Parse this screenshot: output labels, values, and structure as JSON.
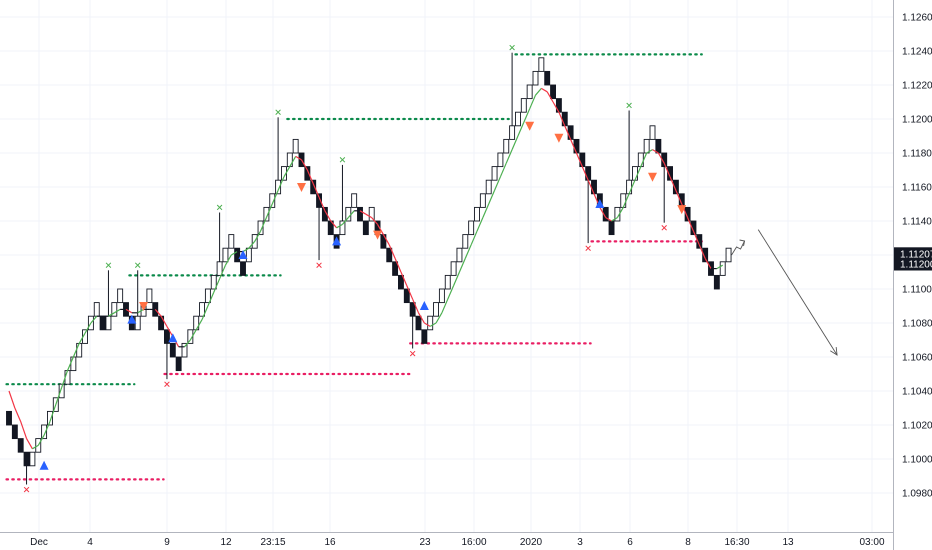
{
  "chart_data": {
    "type": "renko",
    "title": "",
    "xlabel": "",
    "ylabel": "",
    "ylim": [
      1.0972,
      1.1272
    ],
    "box_size": 0.0004,
    "y_ticks": [
      "1.12600",
      "1.12400",
      "1.12200",
      "1.12000",
      "1.11800",
      "1.11600",
      "1.11400",
      "1.11200",
      "1.11000",
      "1.10800",
      "1.10600",
      "1.10400",
      "1.10200",
      "1.10000",
      "1.09800"
    ],
    "x_ticks": [
      "Dec",
      "4",
      "9",
      "12",
      "23:15",
      "16",
      "23",
      "16:00",
      "2020",
      "3",
      "6",
      "8",
      "16:30",
      "13",
      "03:00"
    ],
    "last_price_label": "1.11207",
    "current_box_label": "1.11200",
    "colors": {
      "up_box_fill": "#ffffff",
      "up_box_border": "#131722",
      "down_box_fill": "#131722",
      "ma_up": "#4caf50",
      "ma_down": "#f23645",
      "ma_flat": "#131722",
      "resistance_dots": "#0b8a4a",
      "support_dots": "#e91e63",
      "buy_marker": "#2962ff",
      "sell_marker": "#ff7043",
      "pivot_high_x": "#4caf50",
      "pivot_low_x": "#f23645",
      "price_tag_bg": "#131722",
      "projection_arrow": "#555555"
    },
    "boxes": [
      {
        "o": 1.1028,
        "c": 1.102
      },
      {
        "o": 1.102,
        "c": 1.1012
      },
      {
        "o": 1.1012,
        "c": 1.1004
      },
      {
        "o": 1.1004,
        "c": 1.0996
      },
      {
        "o": 1.0996,
        "c": 1.1004
      },
      {
        "o": 1.1004,
        "c": 1.1012
      },
      {
        "o": 1.1012,
        "c": 1.102
      },
      {
        "o": 1.102,
        "c": 1.1028
      },
      {
        "o": 1.1028,
        "c": 1.1036
      },
      {
        "o": 1.1036,
        "c": 1.1044
      },
      {
        "o": 1.1044,
        "c": 1.1052
      },
      {
        "o": 1.1052,
        "c": 1.106
      },
      {
        "o": 1.106,
        "c": 1.1068
      },
      {
        "o": 1.1068,
        "c": 1.1076
      },
      {
        "o": 1.1076,
        "c": 1.1084
      },
      {
        "o": 1.1084,
        "c": 1.1092
      },
      {
        "o": 1.1084,
        "c": 1.1076
      },
      {
        "o": 1.1076,
        "c": 1.1084
      },
      {
        "o": 1.1084,
        "c": 1.1092
      },
      {
        "o": 1.1092,
        "c": 1.11
      },
      {
        "o": 1.1092,
        "c": 1.1084
      },
      {
        "o": 1.1084,
        "c": 1.1076
      },
      {
        "o": 1.1076,
        "c": 1.1084
      },
      {
        "o": 1.1084,
        "c": 1.1092
      },
      {
        "o": 1.1092,
        "c": 1.11
      },
      {
        "o": 1.1092,
        "c": 1.1084
      },
      {
        "o": 1.1084,
        "c": 1.1076
      },
      {
        "o": 1.1076,
        "c": 1.1068
      },
      {
        "o": 1.1068,
        "c": 1.106
      },
      {
        "o": 1.106,
        "c": 1.1052
      },
      {
        "o": 1.106,
        "c": 1.1068
      },
      {
        "o": 1.1068,
        "c": 1.1076
      },
      {
        "o": 1.1076,
        "c": 1.1084
      },
      {
        "o": 1.1084,
        "c": 1.1092
      },
      {
        "o": 1.1092,
        "c": 1.11
      },
      {
        "o": 1.11,
        "c": 1.1108
      },
      {
        "o": 1.1108,
        "c": 1.1116
      },
      {
        "o": 1.1116,
        "c": 1.1124
      },
      {
        "o": 1.1124,
        "c": 1.1132
      },
      {
        "o": 1.1124,
        "c": 1.1116
      },
      {
        "o": 1.1116,
        "c": 1.1108
      },
      {
        "o": 1.1116,
        "c": 1.1124
      },
      {
        "o": 1.1124,
        "c": 1.1132
      },
      {
        "o": 1.1132,
        "c": 1.114
      },
      {
        "o": 1.114,
        "c": 1.1148
      },
      {
        "o": 1.1148,
        "c": 1.1156
      },
      {
        "o": 1.1156,
        "c": 1.1164
      },
      {
        "o": 1.1164,
        "c": 1.1172
      },
      {
        "o": 1.1172,
        "c": 1.118
      },
      {
        "o": 1.118,
        "c": 1.1188
      },
      {
        "o": 1.118,
        "c": 1.1172
      },
      {
        "o": 1.1172,
        "c": 1.1164
      },
      {
        "o": 1.1164,
        "c": 1.1156
      },
      {
        "o": 1.1156,
        "c": 1.1148
      },
      {
        "o": 1.1148,
        "c": 1.114
      },
      {
        "o": 1.114,
        "c": 1.1132
      },
      {
        "o": 1.1132,
        "c": 1.1124
      },
      {
        "o": 1.1132,
        "c": 1.114
      },
      {
        "o": 1.114,
        "c": 1.1148
      },
      {
        "o": 1.1148,
        "c": 1.1156
      },
      {
        "o": 1.1148,
        "c": 1.114
      },
      {
        "o": 1.114,
        "c": 1.1132
      },
      {
        "o": 1.114,
        "c": 1.1148
      },
      {
        "o": 1.114,
        "c": 1.1132
      },
      {
        "o": 1.1132,
        "c": 1.1124
      },
      {
        "o": 1.1124,
        "c": 1.1116
      },
      {
        "o": 1.1116,
        "c": 1.1108
      },
      {
        "o": 1.1108,
        "c": 1.11
      },
      {
        "o": 1.11,
        "c": 1.1092
      },
      {
        "o": 1.1092,
        "c": 1.1084
      },
      {
        "o": 1.1084,
        "c": 1.1076
      },
      {
        "o": 1.1076,
        "c": 1.1068
      },
      {
        "o": 1.1076,
        "c": 1.1084
      },
      {
        "o": 1.1084,
        "c": 1.1092
      },
      {
        "o": 1.1092,
        "c": 1.11
      },
      {
        "o": 1.11,
        "c": 1.1108
      },
      {
        "o": 1.1108,
        "c": 1.1116
      },
      {
        "o": 1.1116,
        "c": 1.1124
      },
      {
        "o": 1.1124,
        "c": 1.1132
      },
      {
        "o": 1.1132,
        "c": 1.114
      },
      {
        "o": 1.114,
        "c": 1.1148
      },
      {
        "o": 1.1148,
        "c": 1.1156
      },
      {
        "o": 1.1156,
        "c": 1.1164
      },
      {
        "o": 1.1164,
        "c": 1.1172
      },
      {
        "o": 1.1172,
        "c": 1.118
      },
      {
        "o": 1.118,
        "c": 1.1188
      },
      {
        "o": 1.1188,
        "c": 1.1196
      },
      {
        "o": 1.1196,
        "c": 1.1204
      },
      {
        "o": 1.1204,
        "c": 1.1212
      },
      {
        "o": 1.1212,
        "c": 1.122
      },
      {
        "o": 1.122,
        "c": 1.1228
      },
      {
        "o": 1.1228,
        "c": 1.1236
      },
      {
        "o": 1.1228,
        "c": 1.122
      },
      {
        "o": 1.122,
        "c": 1.1212
      },
      {
        "o": 1.1212,
        "c": 1.1204
      },
      {
        "o": 1.1204,
        "c": 1.1196
      },
      {
        "o": 1.1196,
        "c": 1.1188
      },
      {
        "o": 1.1188,
        "c": 1.118
      },
      {
        "o": 1.118,
        "c": 1.1172
      },
      {
        "o": 1.1172,
        "c": 1.1164
      },
      {
        "o": 1.1164,
        "c": 1.1156
      },
      {
        "o": 1.1156,
        "c": 1.1148
      },
      {
        "o": 1.1148,
        "c": 1.114
      },
      {
        "o": 1.114,
        "c": 1.1132
      },
      {
        "o": 1.114,
        "c": 1.1148
      },
      {
        "o": 1.1148,
        "c": 1.1156
      },
      {
        "o": 1.1156,
        "c": 1.1164
      },
      {
        "o": 1.1164,
        "c": 1.1172
      },
      {
        "o": 1.1172,
        "c": 1.118
      },
      {
        "o": 1.118,
        "c": 1.1188
      },
      {
        "o": 1.1188,
        "c": 1.1196
      },
      {
        "o": 1.1188,
        "c": 1.118
      },
      {
        "o": 1.118,
        "c": 1.1172
      },
      {
        "o": 1.1172,
        "c": 1.1164
      },
      {
        "o": 1.1164,
        "c": 1.1156
      },
      {
        "o": 1.1156,
        "c": 1.1148
      },
      {
        "o": 1.1148,
        "c": 1.114
      },
      {
        "o": 1.114,
        "c": 1.1132
      },
      {
        "o": 1.1132,
        "c": 1.1124
      },
      {
        "o": 1.1124,
        "c": 1.1116
      },
      {
        "o": 1.1116,
        "c": 1.1108
      },
      {
        "o": 1.1108,
        "c": 1.11
      },
      {
        "o": 1.1108,
        "c": 1.1116
      },
      {
        "o": 1.1116,
        "c": 1.1124
      }
    ],
    "moving_average": [
      [
        0,
        1.104
      ],
      [
        1,
        1.103
      ],
      [
        2,
        1.1022
      ],
      [
        3,
        1.1012
      ],
      [
        4,
        1.1006
      ],
      [
        5,
        1.1008
      ],
      [
        6,
        1.1014
      ],
      [
        7,
        1.1022
      ],
      [
        8,
        1.1032
      ],
      [
        9,
        1.1042
      ],
      [
        10,
        1.1052
      ],
      [
        11,
        1.106
      ],
      [
        12,
        1.1068
      ],
      [
        13,
        1.1074
      ],
      [
        14,
        1.108
      ],
      [
        15,
        1.1084
      ],
      [
        16,
        1.1084
      ],
      [
        17,
        1.1084
      ],
      [
        18,
        1.1086
      ],
      [
        19,
        1.1088
      ],
      [
        20,
        1.1088
      ],
      [
        21,
        1.1086
      ],
      [
        22,
        1.1086
      ],
      [
        23,
        1.1088
      ],
      [
        24,
        1.1088
      ],
      [
        25,
        1.1088
      ],
      [
        26,
        1.1084
      ],
      [
        27,
        1.1078
      ],
      [
        28,
        1.1072
      ],
      [
        29,
        1.1066
      ],
      [
        30,
        1.1066
      ],
      [
        31,
        1.107
      ],
      [
        32,
        1.1076
      ],
      [
        33,
        1.1082
      ],
      [
        34,
        1.109
      ],
      [
        35,
        1.1098
      ],
      [
        36,
        1.1106
      ],
      [
        37,
        1.1114
      ],
      [
        38,
        1.112
      ],
      [
        39,
        1.1122
      ],
      [
        40,
        1.1122
      ],
      [
        41,
        1.1124
      ],
      [
        42,
        1.1128
      ],
      [
        43,
        1.1134
      ],
      [
        44,
        1.1142
      ],
      [
        45,
        1.115
      ],
      [
        46,
        1.1158
      ],
      [
        47,
        1.1166
      ],
      [
        48,
        1.1172
      ],
      [
        49,
        1.1178
      ],
      [
        50,
        1.1176
      ],
      [
        51,
        1.117
      ],
      [
        52,
        1.1162
      ],
      [
        53,
        1.1154
      ],
      [
        54,
        1.1146
      ],
      [
        55,
        1.114
      ],
      [
        56,
        1.1136
      ],
      [
        57,
        1.1138
      ],
      [
        58,
        1.1142
      ],
      [
        59,
        1.1146
      ],
      [
        60,
        1.1146
      ],
      [
        61,
        1.1144
      ],
      [
        62,
        1.1142
      ],
      [
        63,
        1.1138
      ],
      [
        64,
        1.1132
      ],
      [
        65,
        1.1126
      ],
      [
        66,
        1.1118
      ],
      [
        67,
        1.111
      ],
      [
        68,
        1.1102
      ],
      [
        69,
        1.1094
      ],
      [
        70,
        1.1086
      ],
      [
        71,
        1.108
      ],
      [
        72,
        1.1078
      ],
      [
        73,
        1.108
      ],
      [
        74,
        1.1086
      ],
      [
        75,
        1.1094
      ],
      [
        76,
        1.1102
      ],
      [
        77,
        1.111
      ],
      [
        78,
        1.1118
      ],
      [
        79,
        1.1126
      ],
      [
        80,
        1.1134
      ],
      [
        81,
        1.1142
      ],
      [
        82,
        1.115
      ],
      [
        83,
        1.1158
      ],
      [
        84,
        1.1166
      ],
      [
        85,
        1.1174
      ],
      [
        86,
        1.1182
      ],
      [
        87,
        1.119
      ],
      [
        88,
        1.1198
      ],
      [
        89,
        1.1206
      ],
      [
        90,
        1.1214
      ],
      [
        91,
        1.1218
      ],
      [
        92,
        1.1216
      ],
      [
        93,
        1.121
      ],
      [
        94,
        1.1204
      ],
      [
        95,
        1.1196
      ],
      [
        96,
        1.1188
      ],
      [
        97,
        1.118
      ],
      [
        98,
        1.1172
      ],
      [
        99,
        1.1164
      ],
      [
        100,
        1.1156
      ],
      [
        101,
        1.1148
      ],
      [
        102,
        1.1142
      ],
      [
        103,
        1.114
      ],
      [
        104,
        1.1142
      ],
      [
        105,
        1.1148
      ],
      [
        106,
        1.1156
      ],
      [
        107,
        1.1164
      ],
      [
        108,
        1.1172
      ],
      [
        109,
        1.118
      ],
      [
        110,
        1.1182
      ],
      [
        111,
        1.118
      ],
      [
        112,
        1.1174
      ],
      [
        113,
        1.1166
      ],
      [
        114,
        1.1158
      ],
      [
        115,
        1.115
      ],
      [
        116,
        1.1142
      ],
      [
        117,
        1.1134
      ],
      [
        118,
        1.1126
      ],
      [
        119,
        1.1118
      ],
      [
        120,
        1.1112
      ],
      [
        121,
        1.1112
      ],
      [
        122,
        1.1114
      ]
    ],
    "resistance_lines": [
      {
        "start": 0,
        "end": 21,
        "y": 1.1044
      },
      {
        "start": 21,
        "end": 46,
        "y": 1.1108
      },
      {
        "start": 48,
        "end": 85,
        "y": 1.12
      },
      {
        "start": 87,
        "end": 118,
        "y": 1.1238
      }
    ],
    "support_lines": [
      {
        "start": 0,
        "end": 26,
        "y": 1.0988
      },
      {
        "start": 27,
        "end": 68,
        "y": 1.105
      },
      {
        "start": 69,
        "end": 99,
        "y": 1.1068
      },
      {
        "start": 100,
        "end": 118,
        "y": 1.1128
      }
    ],
    "pivot_highs": [
      {
        "i": 17,
        "y": 1.1114
      },
      {
        "i": 22,
        "y": 1.1114
      },
      {
        "i": 36,
        "y": 1.1148
      },
      {
        "i": 46,
        "y": 1.1204
      },
      {
        "i": 57,
        "y": 1.1176
      },
      {
        "i": 86,
        "y": 1.1242
      },
      {
        "i": 106,
        "y": 1.1208
      }
    ],
    "pivot_lows": [
      {
        "i": 3,
        "y": 1.0982
      },
      {
        "i": 27,
        "y": 1.1044
      },
      {
        "i": 53,
        "y": 1.1114
      },
      {
        "i": 69,
        "y": 1.1062
      },
      {
        "i": 99,
        "y": 1.1124
      },
      {
        "i": 112,
        "y": 1.1136
      }
    ],
    "buy_signals": [
      {
        "i": 6,
        "y": 1.0996
      },
      {
        "i": 21,
        "y": 1.1082
      },
      {
        "i": 28,
        "y": 1.1071
      },
      {
        "i": 40,
        "y": 1.112
      },
      {
        "i": 56,
        "y": 1.1128
      },
      {
        "i": 71,
        "y": 1.109
      },
      {
        "i": 101,
        "y": 1.115
      }
    ],
    "sell_signals": [
      {
        "i": 23,
        "y": 1.109
      },
      {
        "i": 50,
        "y": 1.116
      },
      {
        "i": 63,
        "y": 1.1132
      },
      {
        "i": 89,
        "y": 1.1196
      },
      {
        "i": 94,
        "y": 1.1189
      },
      {
        "i": 110,
        "y": 1.1166
      },
      {
        "i": 115,
        "y": 1.1147
      }
    ],
    "projection": {
      "from_i": 125,
      "from_y": 1.1132,
      "to_i": 133,
      "to_y": 1.107
    }
  }
}
